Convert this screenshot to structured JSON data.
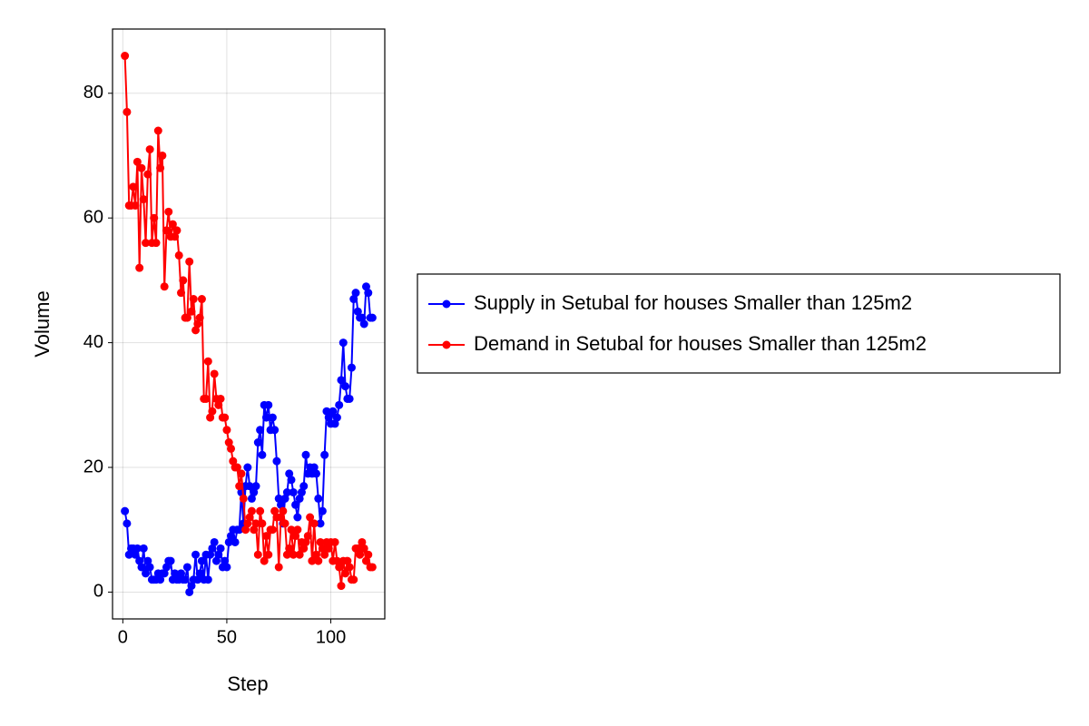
{
  "chart_data": {
    "type": "line",
    "xlabel": "Step",
    "ylabel": "Volume",
    "x": [
      1,
      2,
      3,
      4,
      5,
      6,
      7,
      8,
      9,
      10,
      11,
      12,
      13,
      14,
      15,
      16,
      17,
      18,
      19,
      20,
      21,
      22,
      23,
      24,
      25,
      26,
      27,
      28,
      29,
      30,
      31,
      32,
      33,
      34,
      35,
      36,
      37,
      38,
      39,
      40,
      41,
      42,
      43,
      44,
      45,
      46,
      47,
      48,
      49,
      50,
      51,
      52,
      53,
      54,
      55,
      56,
      57,
      58,
      59,
      60,
      61,
      62,
      63,
      64,
      65,
      66,
      67,
      68,
      69,
      70,
      71,
      72,
      73,
      74,
      75,
      76,
      77,
      78,
      79,
      80,
      81,
      82,
      83,
      84,
      85,
      86,
      87,
      88,
      89,
      90,
      91,
      92,
      93,
      94,
      95,
      96,
      97,
      98,
      99,
      100,
      101,
      102,
      103,
      104,
      105,
      106,
      107,
      108,
      109,
      110,
      111,
      112,
      113,
      114,
      115,
      116,
      117,
      118,
      119,
      120
    ],
    "series": [
      {
        "name": "Supply in Setubal for houses Smaller than 125m2",
        "color": "#0000ff",
        "values": [
          13,
          11,
          6,
          7,
          7,
          6,
          7,
          5,
          4,
          7,
          3,
          5,
          4,
          2,
          2,
          2,
          3,
          2,
          3,
          3,
          4,
          5,
          5,
          2,
          3,
          2,
          2,
          3,
          2,
          2,
          4,
          0,
          1,
          2,
          6,
          2,
          3,
          5,
          2,
          6,
          2,
          6,
          7,
          8,
          5,
          6,
          7,
          4,
          5,
          4,
          8,
          9,
          10,
          8,
          10,
          10,
          16,
          11,
          17,
          20,
          17,
          15,
          16,
          17,
          24,
          26,
          22,
          30,
          28,
          30,
          26,
          28,
          26,
          21,
          15,
          14,
          11,
          15,
          16,
          19,
          18,
          16,
          14,
          12,
          15,
          16,
          17,
          22,
          19,
          20,
          19,
          20,
          19,
          15,
          11,
          13,
          22,
          29,
          28,
          27,
          29,
          27,
          28,
          30,
          34,
          40,
          33,
          31,
          31,
          36,
          47,
          48,
          45,
          44,
          44,
          43,
          49,
          48,
          44,
          44
        ]
      },
      {
        "name": "Demand in Setubal for houses Smaller than 125m2",
        "color": "#ff0000",
        "values": [
          86,
          77,
          62,
          62,
          65,
          62,
          69,
          52,
          68,
          63,
          56,
          67,
          71,
          56,
          60,
          56,
          74,
          68,
          70,
          49,
          58,
          61,
          57,
          59,
          57,
          58,
          54,
          48,
          50,
          44,
          44,
          53,
          45,
          47,
          42,
          43,
          44,
          47,
          31,
          31,
          37,
          28,
          29,
          35,
          31,
          30,
          31,
          28,
          28,
          26,
          24,
          23,
          21,
          20,
          20,
          17,
          19,
          15,
          10,
          11,
          12,
          13,
          10,
          11,
          6,
          13,
          11,
          5,
          9,
          6,
          10,
          10,
          13,
          12,
          4,
          12,
          13,
          11,
          6,
          7,
          10,
          6,
          9,
          10,
          6,
          8,
          7,
          8,
          9,
          12,
          5,
          11,
          6,
          5,
          8,
          7,
          6,
          8,
          7,
          8,
          5,
          8,
          5,
          4,
          1,
          5,
          3,
          5,
          4,
          2,
          2,
          7,
          7,
          6,
          8,
          7,
          5,
          6,
          4,
          4
        ]
      }
    ],
    "xlim": [
      -4.95,
      125.95
    ],
    "xticks": [
      0,
      50,
      100
    ],
    "ylim": [
      -4.3,
      90.3
    ],
    "yticks": [
      0,
      20,
      40,
      60,
      80
    ],
    "grid": true,
    "legend": "right"
  }
}
